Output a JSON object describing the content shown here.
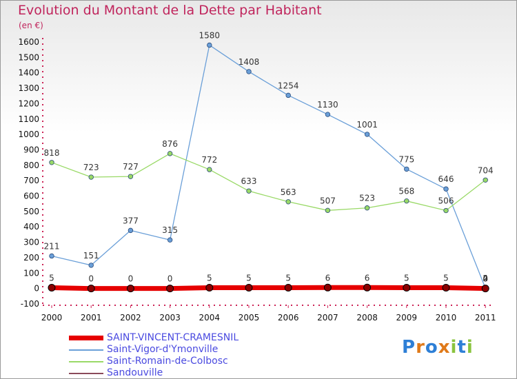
{
  "chart_data": {
    "type": "line",
    "title": "Evolution du Montant de la Dette par Habitant",
    "subtitle": "(en €)",
    "xlabel": "",
    "ylabel": "",
    "categories": [
      "2000",
      "2001",
      "2002",
      "2003",
      "2004",
      "2005",
      "2006",
      "2007",
      "2008",
      "2009",
      "2010",
      "2011"
    ],
    "ylim": [
      -100,
      1600
    ],
    "yticks": [
      -100,
      0,
      100,
      200,
      300,
      400,
      500,
      600,
      700,
      800,
      900,
      1000,
      1100,
      1200,
      1300,
      1400,
      1500,
      1600
    ],
    "grid": false,
    "legend_position": "bottom-left",
    "series": [
      {
        "name": "SAINT-VINCENT-CRAMESNIL",
        "color": "#e60000",
        "values": [
          5,
          0,
          0,
          0,
          5,
          5,
          5,
          6,
          6,
          5,
          5,
          0
        ],
        "labels": [
          "5",
          "0",
          "0",
          "0",
          "5",
          "5",
          "5",
          "6",
          "6",
          "5",
          "5",
          "0"
        ]
      },
      {
        "name": "Saint-Vigor-d'Ymonville",
        "color": "#6a9fd8",
        "values": [
          211,
          151,
          377,
          315,
          1580,
          1408,
          1254,
          1130,
          1001,
          775,
          646,
          2
        ],
        "labels": [
          "211",
          "151",
          "377",
          "315",
          "1580",
          "1408",
          "1254",
          "1130",
          "1001",
          "775",
          "646",
          "2"
        ]
      },
      {
        "name": "Saint-Romain-de-Colbosc",
        "color": "#99d966",
        "values": [
          818,
          723,
          727,
          876,
          772,
          633,
          563,
          507,
          523,
          568,
          506,
          704
        ],
        "labels": [
          "818",
          "723",
          "727",
          "876",
          "772",
          "633",
          "563",
          "507",
          "523",
          "568",
          "506",
          "704"
        ]
      },
      {
        "name": "Sandouville",
        "color": "#8a4a5a",
        "values": [
          0,
          0,
          0,
          0,
          0,
          0,
          0,
          0,
          0,
          0,
          0,
          4
        ],
        "labels": [
          "",
          "",
          "",
          "",
          "",
          "",
          "",
          "",
          "",
          "",
          "",
          "4"
        ]
      }
    ]
  },
  "brand": {
    "letters": [
      {
        "ch": "P",
        "color": "#2e7fd6"
      },
      {
        "ch": "r",
        "color": "#e07a1a"
      },
      {
        "ch": "o",
        "color": "#2e7fd6"
      },
      {
        "ch": "x",
        "color": "#e07a1a"
      },
      {
        "ch": "i",
        "color": "#8ac43f"
      },
      {
        "ch": "t",
        "color": "#2e7fd6"
      },
      {
        "ch": "i",
        "color": "#8ac43f"
      }
    ]
  }
}
